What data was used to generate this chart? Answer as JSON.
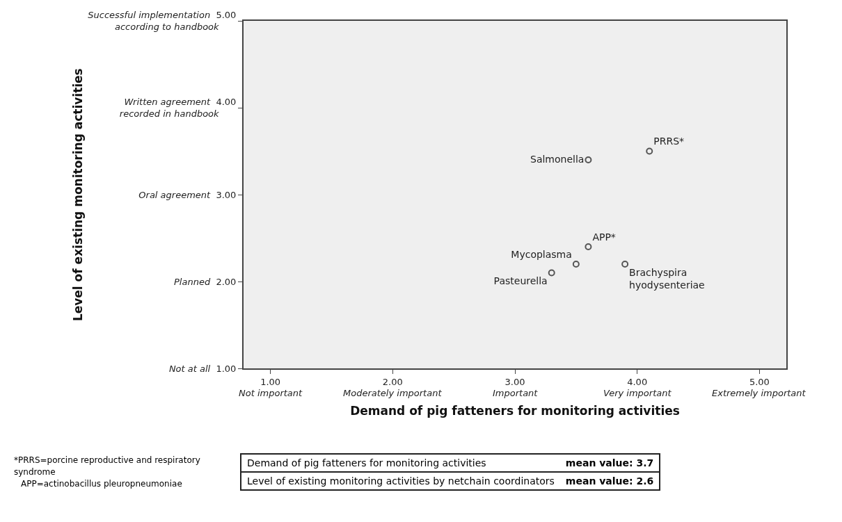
{
  "chart_data": {
    "type": "scatter",
    "xlabel": "Demand of pig fatteners for monitoring activities",
    "x": [
      3.6,
      4.1,
      3.6,
      3.5,
      3.9,
      3.3
    ],
    "series": [
      {
        "color": "#555555",
        "values": [
          3.4,
          3.5,
          2.4,
          2.2,
          2.2,
          2.1
        ],
        "value_labels": [
          "Salmonella",
          "PRRS*",
          "APP*",
          "Mycoplasma",
          "Brachyspira\nhyodysenteriae",
          "Pasteurella"
        ]
      }
    ],
    "xlim": [
      0.78,
      5.22
    ],
    "ylim": [
      1,
      5
    ],
    "xticks": [
      {
        "value": 1,
        "label": "1.00"
      },
      {
        "value": 2,
        "label": "2.00"
      },
      {
        "value": 3,
        "label": "3.00"
      },
      {
        "value": 4,
        "label": "4.00"
      },
      {
        "value": 5,
        "label": "5.00"
      }
    ],
    "yticks": [
      {
        "value": 1,
        "label": "1.00"
      },
      {
        "value": 2,
        "label": "2.00"
      },
      {
        "value": 3,
        "label": "3.00"
      },
      {
        "value": 4,
        "label": "4.00"
      },
      {
        "value": 5,
        "label": "5.00"
      }
    ],
    "marker": "circle",
    "grid": false,
    "annotations": [
      "Level of existing monitoring activities",
      "Not important",
      "Moderately important",
      "Important",
      "Very important",
      "Extremely important",
      "Not at all",
      "Planned",
      "Oral agreement",
      "Written agreement\nrecorded in handbook",
      "Successful implementation\naccording to handbook",
      "*PRRS=porcine reproductive and respiratory syndrome",
      "APP=actinobacillus pleuropneumoniae",
      "Demand of pig fatteners for monitoring activities",
      "mean value: 3.7",
      "Level of existing monitoring activities by netchain coordinators",
      "mean value: 2.6"
    ]
  }
}
